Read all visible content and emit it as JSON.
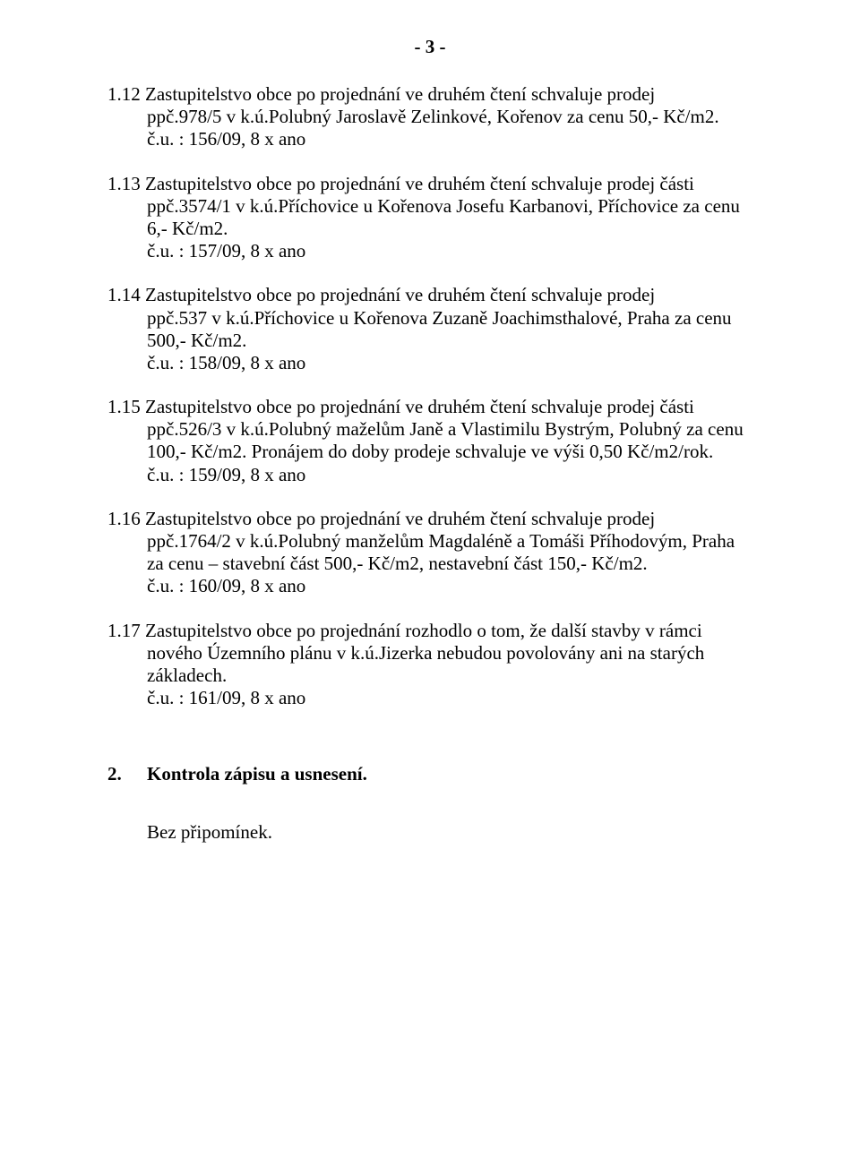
{
  "page_number_label": "- 3 -",
  "items": [
    {
      "num": "1.12",
      "line1_rest": " Zastupitelstvo obce po projednání ve druhém čtení schvaluje  prodej",
      "body": "ppč.978/5 v k.ú.Polubný Jaroslavě Zelinkové, Kořenov za cenu 50,- Kč/m2.",
      "ref": "č.u. : 156/09, 8 x ano"
    },
    {
      "num": "1.13",
      "line1_rest": " Zastupitelstvo obce po projednání ve druhém čtení schvaluje  prodej části",
      "body": "ppč.3574/1 v k.ú.Příchovice u Kořenova Josefu Karbanovi, Příchovice za cenu 6,- Kč/m2.",
      "ref": "č.u. : 157/09, 8 x ano"
    },
    {
      "num": "1.14",
      "line1_rest": " Zastupitelstvo obce po projednání ve druhém čtení schvaluje  prodej",
      "body": "ppč.537 v k.ú.Příchovice u Kořenova Zuzaně Joachimsthalové, Praha za cenu 500,- Kč/m2.",
      "ref": "č.u. : 158/09, 8 x ano"
    },
    {
      "num": "1.15",
      "line1_rest": " Zastupitelstvo obce po projednání ve druhém čtení schvaluje  prodej části",
      "body": "ppč.526/3 v k.ú.Polubný maželům Janě a Vlastimilu Bystrým, Polubný za cenu 100,- Kč/m2. Pronájem do doby prodeje schvaluje ve výši 0,50 Kč/m2/rok.",
      "ref": "č.u. : 159/09, 8 x ano"
    },
    {
      "num": "1.16",
      "line1_rest": " Zastupitelstvo obce po projednání ve druhém čtení schvaluje  prodej",
      "body": "ppč.1764/2 v k.ú.Polubný manželům Magdaléně a Tomáši Příhodovým, Praha za cenu – stavební část 500,- Kč/m2, nestavební část 150,- Kč/m2.",
      "ref": "č.u. : 160/09, 8 x ano"
    },
    {
      "num": "1.17",
      "line1_rest": " Zastupitelstvo obce po projednání rozhodlo o tom, že další stavby v rámci",
      "body": "nového Územního plánu v k.ú.Jizerka nebudou povolovány ani na starých základech.",
      "ref": "č.u. : 161/09, 8 x ano"
    }
  ],
  "section2": {
    "num": "2.",
    "title": "Kontrola zápisu a usnesení.",
    "note": "Bez připomínek."
  }
}
